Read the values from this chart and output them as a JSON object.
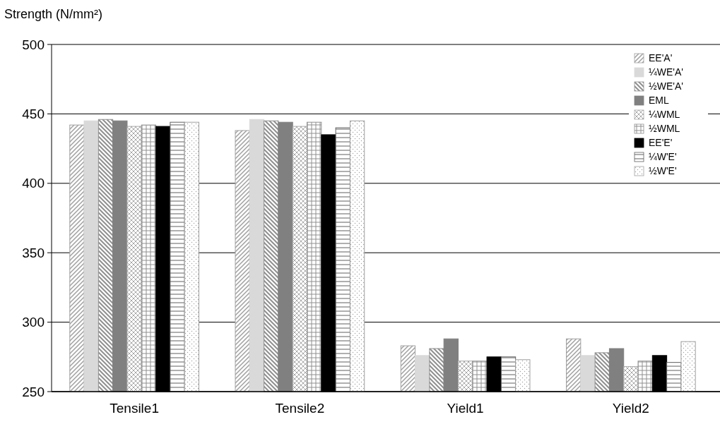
{
  "chart_data": {
    "type": "bar",
    "ylabel": "Strength (N/mm²)",
    "categories": [
      "Tensile1",
      "Tensile2",
      "Yield1",
      "Yield2"
    ],
    "series": [
      {
        "name": "EE'A'",
        "color": "#a0a0a0",
        "values": [
          442,
          438,
          283,
          288
        ]
      },
      {
        "name": "¼WE'A'",
        "color": "#d9d9d9",
        "values": [
          445,
          446,
          276,
          276
        ]
      },
      {
        "name": "½WE'A'",
        "color": "#909090",
        "values": [
          446,
          445,
          281,
          278
        ]
      },
      {
        "name": "EML",
        "color": "#808080",
        "values": [
          445,
          444,
          288,
          281
        ]
      },
      {
        "name": "¼WML",
        "color": "#a8a8a8",
        "values": [
          441,
          441,
          272,
          268
        ]
      },
      {
        "name": "½WML",
        "color": "#909090",
        "values": [
          442,
          444,
          272,
          272
        ]
      },
      {
        "name": "EE'E'",
        "color": "#000000",
        "values": [
          441,
          435,
          275,
          276
        ]
      },
      {
        "name": "¼W'E'",
        "color": "#606060",
        "values": [
          444,
          440,
          275,
          271
        ]
      },
      {
        "name": "½W'E'",
        "color": "#a0a0a0",
        "values": [
          444,
          445,
          273,
          286
        ]
      }
    ],
    "ylim": [
      250,
      500
    ],
    "yticks": [
      250,
      300,
      350,
      400,
      450,
      500
    ],
    "grid": "y",
    "legend": "top right"
  }
}
